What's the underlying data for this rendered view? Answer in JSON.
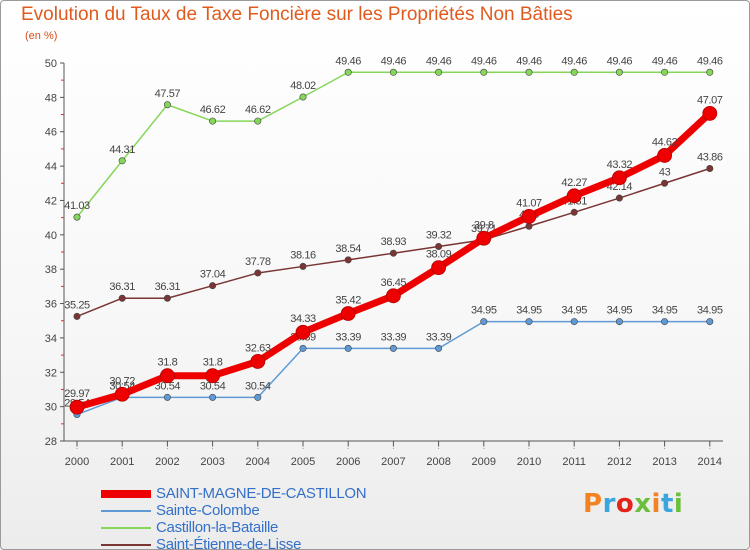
{
  "title": "Evolution du Taux de Taxe Foncière sur les Propriétés Non Bâties",
  "unit": "(en %)",
  "logo": {
    "text": "Proxiti",
    "colors": [
      "#f58220",
      "#3aa6dd",
      "#e2251b",
      "#6cbf3c",
      "#f58220",
      "#3aa6dd",
      "#6cbf3c"
    ]
  },
  "chart_data": {
    "type": "line",
    "title": "Evolution du Taux de Taxe Foncière sur les Propriétés Non Bâties",
    "ylabel": "(en %)",
    "xlabel": "",
    "x": [
      "2000",
      "2001",
      "2002",
      "2003",
      "2004",
      "2005",
      "2006",
      "2007",
      "2008",
      "2009",
      "2010",
      "2011",
      "2012",
      "2013",
      "2014"
    ],
    "ylim": [
      28,
      50
    ],
    "yticks": [
      28,
      30,
      32,
      34,
      36,
      38,
      40,
      42,
      44,
      46,
      48,
      50
    ],
    "grid": false,
    "legend_position": "bottom-left",
    "series": [
      {
        "name": "SAINT-MAGNE-DE-CASTILLON",
        "color": "#ee0000",
        "emphasis": true,
        "values": [
          29.97,
          30.72,
          31.8,
          31.8,
          32.63,
          34.33,
          35.42,
          36.45,
          38.09,
          39.8,
          41.07,
          42.27,
          43.32,
          44.62,
          47.07
        ],
        "labels": [
          "29.97",
          "30.72",
          "31.8",
          "31.8",
          "32.63",
          "34.33",
          "35.42",
          "36.45",
          "38.09",
          "39.8",
          "41.07",
          "42.27",
          "43.32",
          "44.62",
          "47.07"
        ]
      },
      {
        "name": "Sainte-Colombe",
        "color": "#5f9ad6",
        "values": [
          29.54,
          30.54,
          30.54,
          30.54,
          30.54,
          33.39,
          33.39,
          33.39,
          33.39,
          34.95,
          34.95,
          34.95,
          34.95,
          34.95,
          34.95
        ],
        "labels": [
          "29.54",
          "30.54",
          "30.54",
          "30.54",
          "30.54",
          "33.39",
          "33.39",
          "33.39",
          "33.39",
          "34.95",
          "34.95",
          "34.95",
          "34.95",
          "34.95",
          "34.95"
        ]
      },
      {
        "name": "Castillon-la-Bataille",
        "color": "#86d65a",
        "values": [
          41.03,
          44.31,
          47.57,
          46.62,
          46.62,
          48.02,
          49.46,
          49.46,
          49.46,
          49.46,
          49.46,
          49.46,
          49.46,
          49.46,
          49.46
        ],
        "labels": [
          "41.03",
          "44.31",
          "47.57",
          "46.62",
          "46.62",
          "48.02",
          "49.46",
          "49.46",
          "49.46",
          "49.46",
          "49.46",
          "49.46",
          "49.46",
          "49.46",
          "49.46"
        ]
      },
      {
        "name": "Saint-Étienne-de-Lisse",
        "color": "#7a3535",
        "values": [
          35.25,
          36.31,
          36.31,
          37.04,
          37.78,
          38.16,
          38.54,
          38.93,
          39.32,
          39.71,
          40.5,
          41.31,
          42.14,
          43,
          43.86
        ],
        "labels": [
          "35.25",
          "36.31",
          "36.31",
          "37.04",
          "37.78",
          "38.16",
          "38.54",
          "38.93",
          "39.32",
          "39.71",
          "40.5",
          "41.31",
          "42.14",
          "43",
          "43.86"
        ]
      }
    ]
  }
}
